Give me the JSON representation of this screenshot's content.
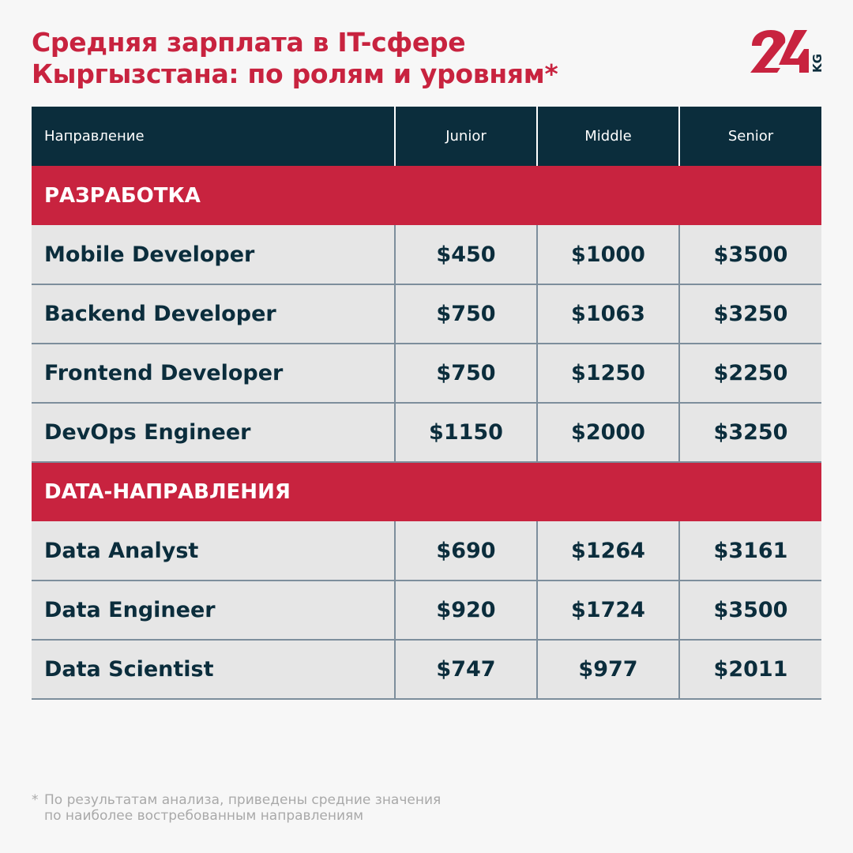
{
  "title": [
    "Средняя зарплата в IT-сфере",
    "Кыргызстана: по ролям и уровням*"
  ],
  "logo": {
    "text": "24",
    "suffix": "KG",
    "color": "#c8233f",
    "suffix_color": "#0b2d3c"
  },
  "colors": {
    "accent": "#c8233f",
    "header": "#0b2d3c",
    "row": "#e6e6e6"
  },
  "table": {
    "headers": [
      "Направление",
      "Junior",
      "Middle",
      "Senior"
    ],
    "sections": [
      {
        "title": "РАЗРАБОТКА",
        "rows": [
          [
            "Mobile Developer",
            "$450",
            "$1000",
            "$3500"
          ],
          [
            "Backend Developer",
            "$750",
            "$1063",
            "$3250"
          ],
          [
            "Frontend Developer",
            "$750",
            "$1250",
            "$2250"
          ],
          [
            "DevOps Engineer",
            "$1150",
            "$2000",
            "$3250"
          ]
        ]
      },
      {
        "title": "DATA-НАПРАВЛЕНИЯ",
        "rows": [
          [
            "Data Analyst",
            "$690",
            "$1264",
            "$3161"
          ],
          [
            "Data Engineer",
            "$920",
            "$1724",
            "$3500"
          ],
          [
            "Data Scientist",
            "$747",
            "$977",
            "$2011"
          ]
        ]
      }
    ]
  },
  "footnote": {
    "mark": "*",
    "lines": [
      "По результатам анализа, приведены средние значения",
      "по наиболее востребованным направлениям"
    ]
  }
}
